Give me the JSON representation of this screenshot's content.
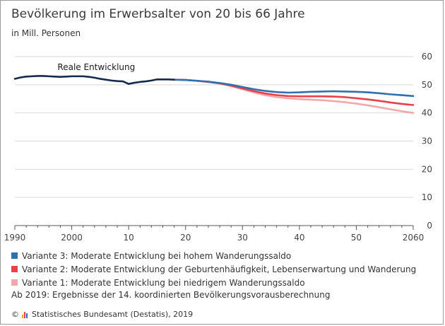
{
  "header": {
    "title": "Bevölkerung im Erwerbsalter von 20 bis 66 Jahre",
    "unit": "in Mill. Personen"
  },
  "chart_data": {
    "type": "line",
    "title": "Bevölkerung im Erwerbsalter von 20 bis 66 Jahre",
    "ylabel": "in Mill. Personen",
    "xlim": [
      1990,
      2060
    ],
    "ylim": [
      0,
      60
    ],
    "x_ticks": [
      1990,
      2000,
      2010,
      2020,
      2030,
      2040,
      2050,
      2060
    ],
    "x_tick_labels": [
      "1990",
      "2000",
      "10",
      "20",
      "30",
      "40",
      "50",
      "2060"
    ],
    "y_ticks": [
      0,
      10,
      20,
      30,
      40,
      50,
      60
    ],
    "y_tick_labels": [
      "0",
      "10",
      "20",
      "30",
      "40",
      "50",
      "60"
    ],
    "y_axis_position": "right",
    "grid": "horizontal",
    "annotation": "Reale Entwicklung",
    "series": [
      {
        "name": "Reale Entwicklung",
        "color": "#132a4a",
        "x": [
          1990,
          1991,
          1992,
          1993,
          1994,
          1995,
          1996,
          1997,
          1998,
          1999,
          2000,
          2001,
          2002,
          2003,
          2004,
          2005,
          2006,
          2007,
          2008,
          2009,
          2010,
          2011,
          2012,
          2013,
          2014,
          2015,
          2016,
          2017,
          2018
        ],
        "y": [
          52.1,
          52.6,
          52.9,
          53.0,
          53.1,
          53.1,
          53.0,
          52.9,
          52.8,
          52.9,
          53.0,
          53.0,
          53.0,
          52.8,
          52.5,
          52.1,
          51.8,
          51.5,
          51.3,
          51.2,
          50.3,
          50.7,
          51.0,
          51.2,
          51.5,
          51.9,
          51.9,
          51.9,
          51.8
        ]
      },
      {
        "name": "Variante 3: Moderate Entwicklung bei hohem Wanderungssaldo",
        "color": "#2f70ad",
        "x": [
          2018,
          2020,
          2022,
          2024,
          2026,
          2028,
          2030,
          2032,
          2034,
          2036,
          2038,
          2040,
          2042,
          2044,
          2046,
          2048,
          2050,
          2052,
          2054,
          2056,
          2058,
          2060
        ],
        "y": [
          51.8,
          51.7,
          51.4,
          51.1,
          50.6,
          50.0,
          49.2,
          48.4,
          47.8,
          47.4,
          47.2,
          47.3,
          47.5,
          47.6,
          47.7,
          47.6,
          47.5,
          47.3,
          47.0,
          46.6,
          46.3,
          46.0
        ]
      },
      {
        "name": "Variante 2: Moderate Entwicklung der Geburtenhäufigkeit, Lebenserwartung und Wanderung",
        "color": "#e8414a",
        "x": [
          2018,
          2020,
          2022,
          2024,
          2026,
          2028,
          2030,
          2032,
          2034,
          2036,
          2038,
          2040,
          2042,
          2044,
          2046,
          2048,
          2050,
          2052,
          2054,
          2056,
          2058,
          2060
        ],
        "y": [
          51.8,
          51.7,
          51.4,
          51.0,
          50.5,
          49.7,
          48.7,
          47.7,
          46.9,
          46.3,
          46.0,
          45.9,
          45.9,
          45.9,
          45.8,
          45.6,
          45.2,
          44.8,
          44.3,
          43.7,
          43.2,
          42.8
        ]
      },
      {
        "name": "Variante 1: Moderate Entwicklung bei niedrigem Wanderungssaldo",
        "color": "#f2a7ab",
        "x": [
          2018,
          2020,
          2022,
          2024,
          2026,
          2028,
          2030,
          2032,
          2034,
          2036,
          2038,
          2040,
          2042,
          2044,
          2046,
          2048,
          2050,
          2052,
          2054,
          2056,
          2058,
          2060
        ],
        "y": [
          51.8,
          51.7,
          51.4,
          51.0,
          50.4,
          49.5,
          48.4,
          47.3,
          46.3,
          45.6,
          45.2,
          44.9,
          44.7,
          44.5,
          44.2,
          43.8,
          43.3,
          42.7,
          42.0,
          41.3,
          40.6,
          40.0
        ]
      }
    ]
  },
  "legend": [
    {
      "label": "Variante 3: Moderate Entwicklung bei hohem Wanderungssaldo",
      "color": "#2f70ad"
    },
    {
      "label": "Variante 2: Moderate Entwicklung der Geburtenhäufigkeit, Lebenserwartung und Wanderung",
      "color": "#e8414a"
    },
    {
      "label": "Variante 1: Moderate Entwicklung bei niedrigem Wanderungssaldo",
      "color": "#f2a7ab"
    }
  ],
  "footnote": "Ab 2019: Ergebnisse der 14. koordinierten Bevölkerungsvorausberechnung",
  "source": {
    "copyright": "©",
    "text": "Statistisches Bundesamt (Destatis), 2019",
    "logo_colors": [
      "#f5a623",
      "#e8414a",
      "#2f70ad"
    ]
  }
}
